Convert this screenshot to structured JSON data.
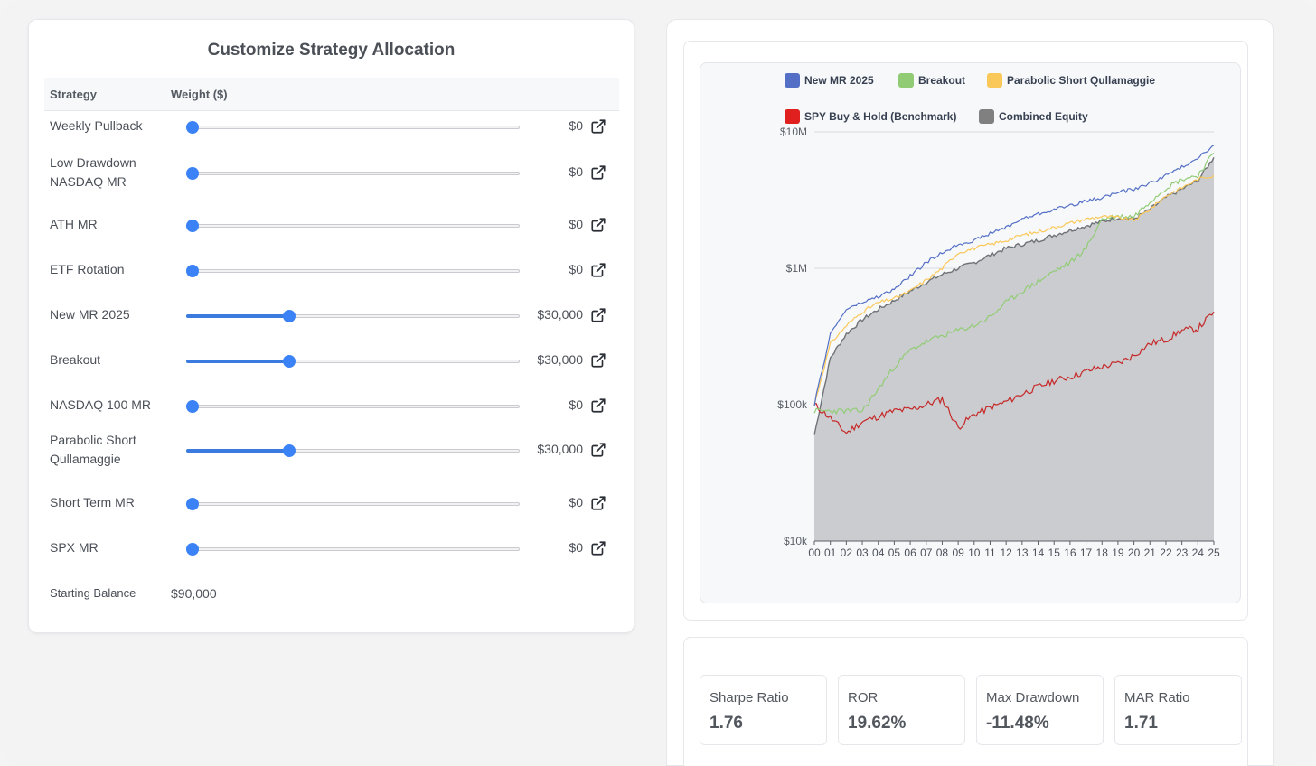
{
  "panel": {
    "title": "Customize Strategy Allocation",
    "col_strategy": "Strategy",
    "col_weight": "Weight ($)",
    "starting_balance_label": "Starting Balance",
    "starting_balance_value": "$90,000"
  },
  "strategies": [
    {
      "line1": "Weekly Pullback",
      "line2": "",
      "amount": "$0",
      "weight_fraction": 0.0
    },
    {
      "line1": "Low Drawdown",
      "line2": "NASDAQ MR",
      "amount": "$0",
      "weight_fraction": 0.0
    },
    {
      "line1": "ATH MR",
      "line2": "",
      "amount": "$0",
      "weight_fraction": 0.0
    },
    {
      "line1": "ETF Rotation",
      "line2": "",
      "amount": "$0",
      "weight_fraction": 0.0
    },
    {
      "line1": "New MR 2025",
      "line2": "",
      "amount": "$30,000",
      "weight_fraction": 0.3
    },
    {
      "line1": "Breakout",
      "line2": "",
      "amount": "$30,000",
      "weight_fraction": 0.3
    },
    {
      "line1": "NASDAQ 100 MR",
      "line2": "",
      "amount": "$0",
      "weight_fraction": 0.0
    },
    {
      "line1": "Parabolic Short",
      "line2": "Qullamaggie",
      "amount": "$30,000",
      "weight_fraction": 0.3
    },
    {
      "line1": "Short Term MR",
      "line2": "",
      "amount": "$0",
      "weight_fraction": 0.0
    },
    {
      "line1": "SPX MR",
      "line2": "",
      "amount": "$0",
      "weight_fraction": 0.0
    }
  ],
  "colors": {
    "accent": "#3b82f6",
    "new_mr": "#5470c6",
    "breakout": "#91cc75",
    "parabolic": "#fac858",
    "spy": "#e01f1f",
    "combined": "#808080"
  },
  "chart_data": {
    "type": "line",
    "yscale": "log",
    "ylim": [
      10000,
      10000000
    ],
    "yticks": [
      "$10k",
      "$100k",
      "$1M",
      "$10M"
    ],
    "ytick_values": [
      10000,
      100000,
      1000000,
      10000000
    ],
    "x": [
      "00",
      "01",
      "02",
      "03",
      "04",
      "05",
      "06",
      "07",
      "08",
      "09",
      "10",
      "11",
      "12",
      "13",
      "14",
      "15",
      "16",
      "17",
      "18",
      "19",
      "20",
      "21",
      "22",
      "23",
      "24",
      "25"
    ],
    "legend": [
      "New MR 2025",
      "Breakout",
      "Parabolic Short Qullamaggie",
      "SPY Buy & Hold (Benchmark)",
      "Combined Equity"
    ],
    "series": [
      {
        "name": "New MR 2025",
        "values": [
          100000,
          330000,
          500000,
          560000,
          620000,
          700000,
          880000,
          1100000,
          1300000,
          1500000,
          1600000,
          1800000,
          2000000,
          2300000,
          2500000,
          2700000,
          2900000,
          3100000,
          3300000,
          3600000,
          3800000,
          4200000,
          4800000,
          5500000,
          6500000,
          8000000
        ]
      },
      {
        "name": "Breakout",
        "values": [
          90000,
          90000,
          90000,
          90000,
          130000,
          190000,
          250000,
          290000,
          320000,
          350000,
          380000,
          440000,
          560000,
          680000,
          800000,
          950000,
          1100000,
          1400000,
          2300000,
          2400000,
          2400000,
          3100000,
          3900000,
          4500000,
          4800000,
          7000000
        ]
      },
      {
        "name": "Parabolic Short Qullamaggie",
        "values": [
          100000,
          280000,
          380000,
          480000,
          560000,
          600000,
          680000,
          820000,
          1000000,
          1300000,
          1400000,
          1500000,
          1600000,
          1750000,
          1850000,
          2000000,
          2150000,
          2300000,
          2400000,
          2350000,
          2250000,
          2700000,
          3400000,
          3900000,
          4500000,
          4800000
        ]
      },
      {
        "name": "SPY Buy & Hold (Benchmark)",
        "values": [
          100000,
          80000,
          62000,
          75000,
          82000,
          90000,
          92000,
          100000,
          110000,
          68000,
          85000,
          95000,
          105000,
          120000,
          135000,
          150000,
          160000,
          175000,
          190000,
          200000,
          230000,
          280000,
          300000,
          350000,
          360000,
          480000
        ]
      },
      {
        "name": "Combined Equity",
        "values": [
          60000,
          220000,
          330000,
          420000,
          500000,
          580000,
          680000,
          790000,
          900000,
          1000000,
          1100000,
          1250000,
          1400000,
          1500000,
          1600000,
          1750000,
          1900000,
          2050000,
          2200000,
          2350000,
          2300000,
          2700000,
          3300000,
          3800000,
          4400000,
          6500000
        ]
      }
    ]
  },
  "stats": [
    {
      "label": "Sharpe Ratio",
      "value": "1.76"
    },
    {
      "label": "ROR",
      "value": "19.62%"
    },
    {
      "label": "Max Drawdown",
      "value": "-11.48%"
    },
    {
      "label": "MAR Ratio",
      "value": "1.71"
    }
  ]
}
